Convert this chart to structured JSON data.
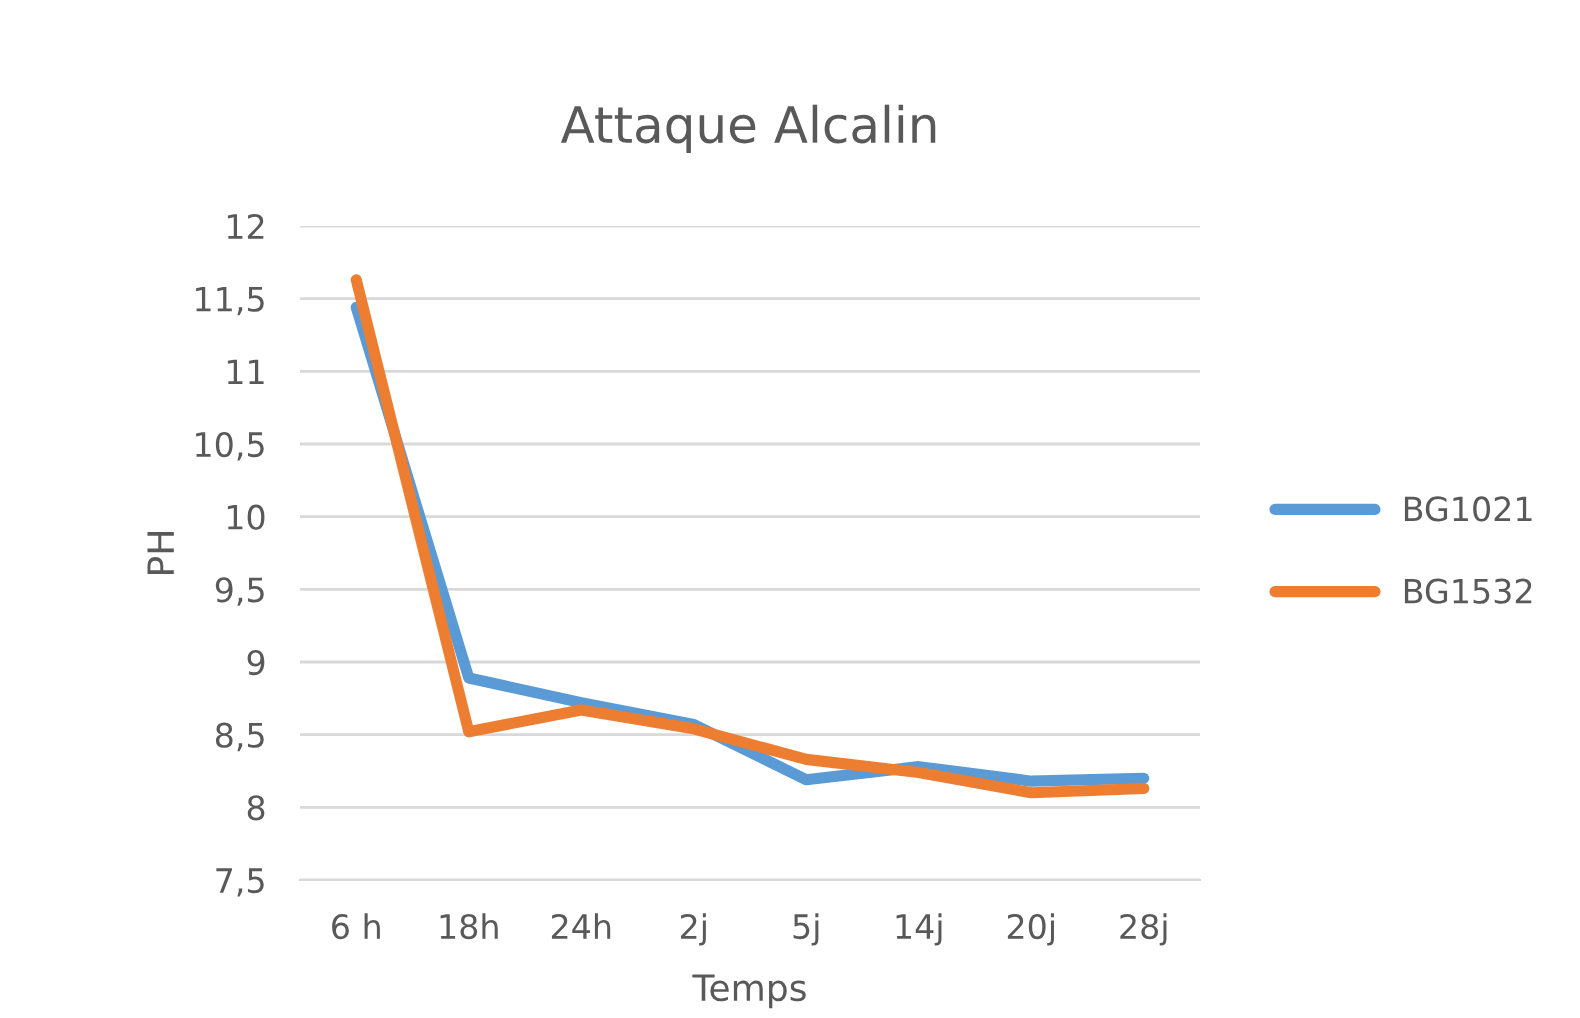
{
  "chart_data": {
    "type": "line",
    "title": "Attaque Alcalin",
    "xlabel": "Temps",
    "ylabel": "PH",
    "categories": [
      "6 h",
      "18h",
      "24h",
      "2j",
      "5j",
      "14j",
      "20j",
      "28j"
    ],
    "series": [
      {
        "name": "BG1021",
        "color": "#5b9bd5",
        "values": [
          11.44,
          8.89,
          8.72,
          8.57,
          8.19,
          8.28,
          8.18,
          8.2
        ]
      },
      {
        "name": "BG1532",
        "color": "#ed7d31",
        "values": [
          11.63,
          8.52,
          8.67,
          8.54,
          8.33,
          8.24,
          8.1,
          8.13
        ]
      }
    ],
    "ylim": [
      7.5,
      12
    ],
    "yticks": [
      {
        "value": 7.5,
        "label": "7,5"
      },
      8,
      {
        "value": 8.5,
        "label": "8,5"
      },
      9,
      {
        "value": 9.5,
        "label": "9,5"
      },
      10,
      {
        "value": 10.5,
        "label": "10,5"
      },
      11,
      {
        "value": 11.5,
        "label": "11,5"
      },
      12
    ],
    "grid": "y",
    "legend": "right",
    "marker": "none",
    "line_style": "solid"
  }
}
